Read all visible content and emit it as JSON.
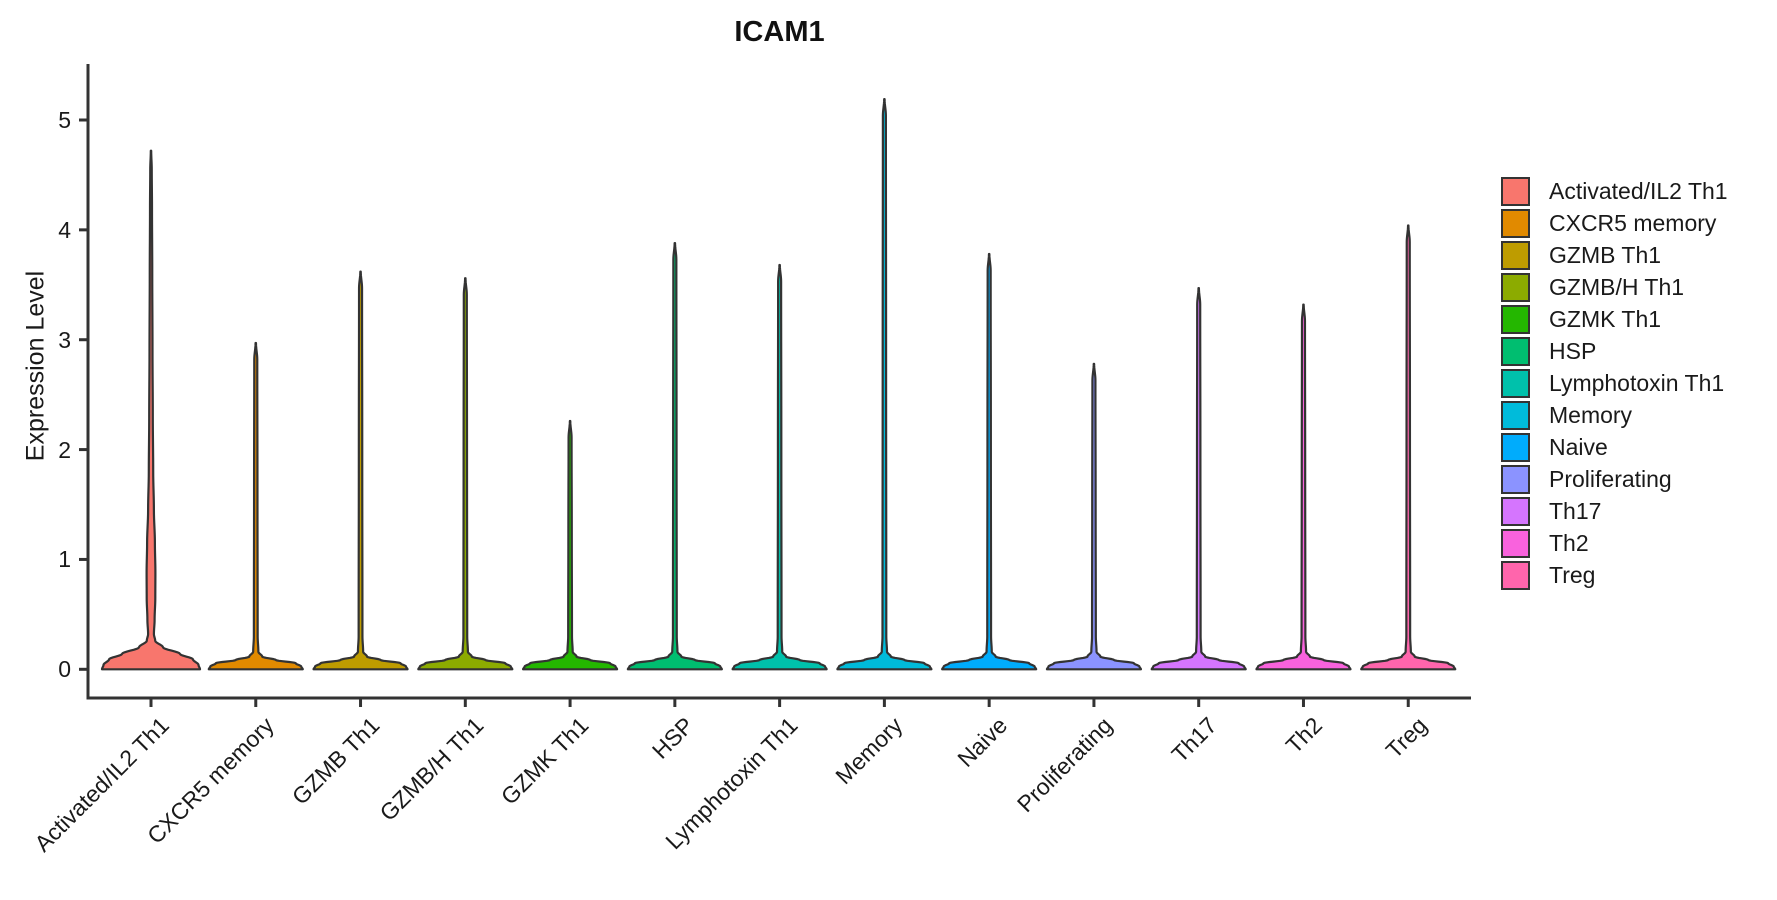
{
  "chart_data": {
    "type": "violin",
    "title": "ICAM1",
    "xlabel": "",
    "ylabel": "Expression Level",
    "ylim": [
      0,
      5.5
    ],
    "yticks": [
      0,
      1,
      2,
      3,
      4,
      5
    ],
    "grid": false,
    "legend_position": "right",
    "axis_color": "#333333",
    "violin_stroke_color": "#333333",
    "categories": [
      "Activated/IL2 Th1",
      "CXCR5 memory",
      "GZMB Th1",
      "GZMB/H Th1",
      "GZMK Th1",
      "HSP",
      "Lymphotoxin Th1",
      "Memory",
      "Naive",
      "Proliferating",
      "Th17",
      "Th2",
      "Treg"
    ],
    "clusters": [
      {
        "label": "Activated/IL2 Th1",
        "color": "#F8766D",
        "max_expression": 4.72,
        "expressed_fraction": "high",
        "body": "wide-base-with-spindle"
      },
      {
        "label": "CXCR5 memory",
        "color": "#E18A00",
        "max_expression": 2.97,
        "expressed_fraction": "low",
        "body": "thin-spike"
      },
      {
        "label": "GZMB Th1",
        "color": "#BE9C00",
        "max_expression": 3.62,
        "expressed_fraction": "low",
        "body": "thin-spike"
      },
      {
        "label": "GZMB/H Th1",
        "color": "#8CAB00",
        "max_expression": 3.56,
        "expressed_fraction": "low",
        "body": "thin-spike"
      },
      {
        "label": "GZMK Th1",
        "color": "#24B700",
        "max_expression": 2.26,
        "expressed_fraction": "low",
        "body": "thin-spike"
      },
      {
        "label": "HSP",
        "color": "#00BE70",
        "max_expression": 3.88,
        "expressed_fraction": "low",
        "body": "thin-spike"
      },
      {
        "label": "Lymphotoxin Th1",
        "color": "#00C1AB",
        "max_expression": 3.68,
        "expressed_fraction": "low",
        "body": "thin-spike"
      },
      {
        "label": "Memory",
        "color": "#00BBDA",
        "max_expression": 5.19,
        "expressed_fraction": "low",
        "body": "thin-spike"
      },
      {
        "label": "Naive",
        "color": "#00ACFC",
        "max_expression": 3.78,
        "expressed_fraction": "low",
        "body": "thin-spike"
      },
      {
        "label": "Proliferating",
        "color": "#8B93FF",
        "max_expression": 2.78,
        "expressed_fraction": "low",
        "body": "thin-spike"
      },
      {
        "label": "Th17",
        "color": "#D575FE",
        "max_expression": 3.47,
        "expressed_fraction": "low",
        "body": "thin-spike"
      },
      {
        "label": "Th2",
        "color": "#F962DD",
        "max_expression": 3.32,
        "expressed_fraction": "low",
        "body": "thin-spike"
      },
      {
        "label": "Treg",
        "color": "#FF65AC",
        "max_expression": 4.04,
        "expressed_fraction": "low",
        "body": "thin-spike"
      }
    ]
  }
}
